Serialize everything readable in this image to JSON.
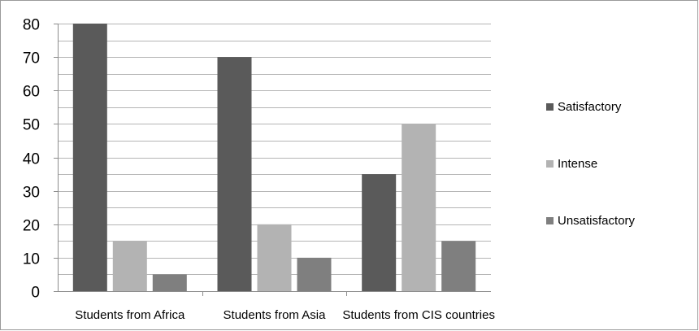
{
  "chart_data": {
    "type": "bar",
    "categories": [
      "Students from Africa",
      "Students from Asia",
      "Students from CIS countries"
    ],
    "series": [
      {
        "name": "Satisfactory",
        "values": [
          80,
          70,
          35
        ],
        "color": "#5a5a5a"
      },
      {
        "name": "Intense",
        "values": [
          15,
          20,
          50
        ],
        "color": "#b3b3b3"
      },
      {
        "name": "Unsatisfactory",
        "values": [
          5,
          10,
          15
        ],
        "color": "#7f7f7f"
      }
    ],
    "ylim": [
      0,
      80
    ],
    "yticks": [
      0,
      10,
      20,
      30,
      40,
      50,
      60,
      70,
      80
    ],
    "grid": true,
    "minor_grid_step": 5,
    "legend_position": "right"
  }
}
